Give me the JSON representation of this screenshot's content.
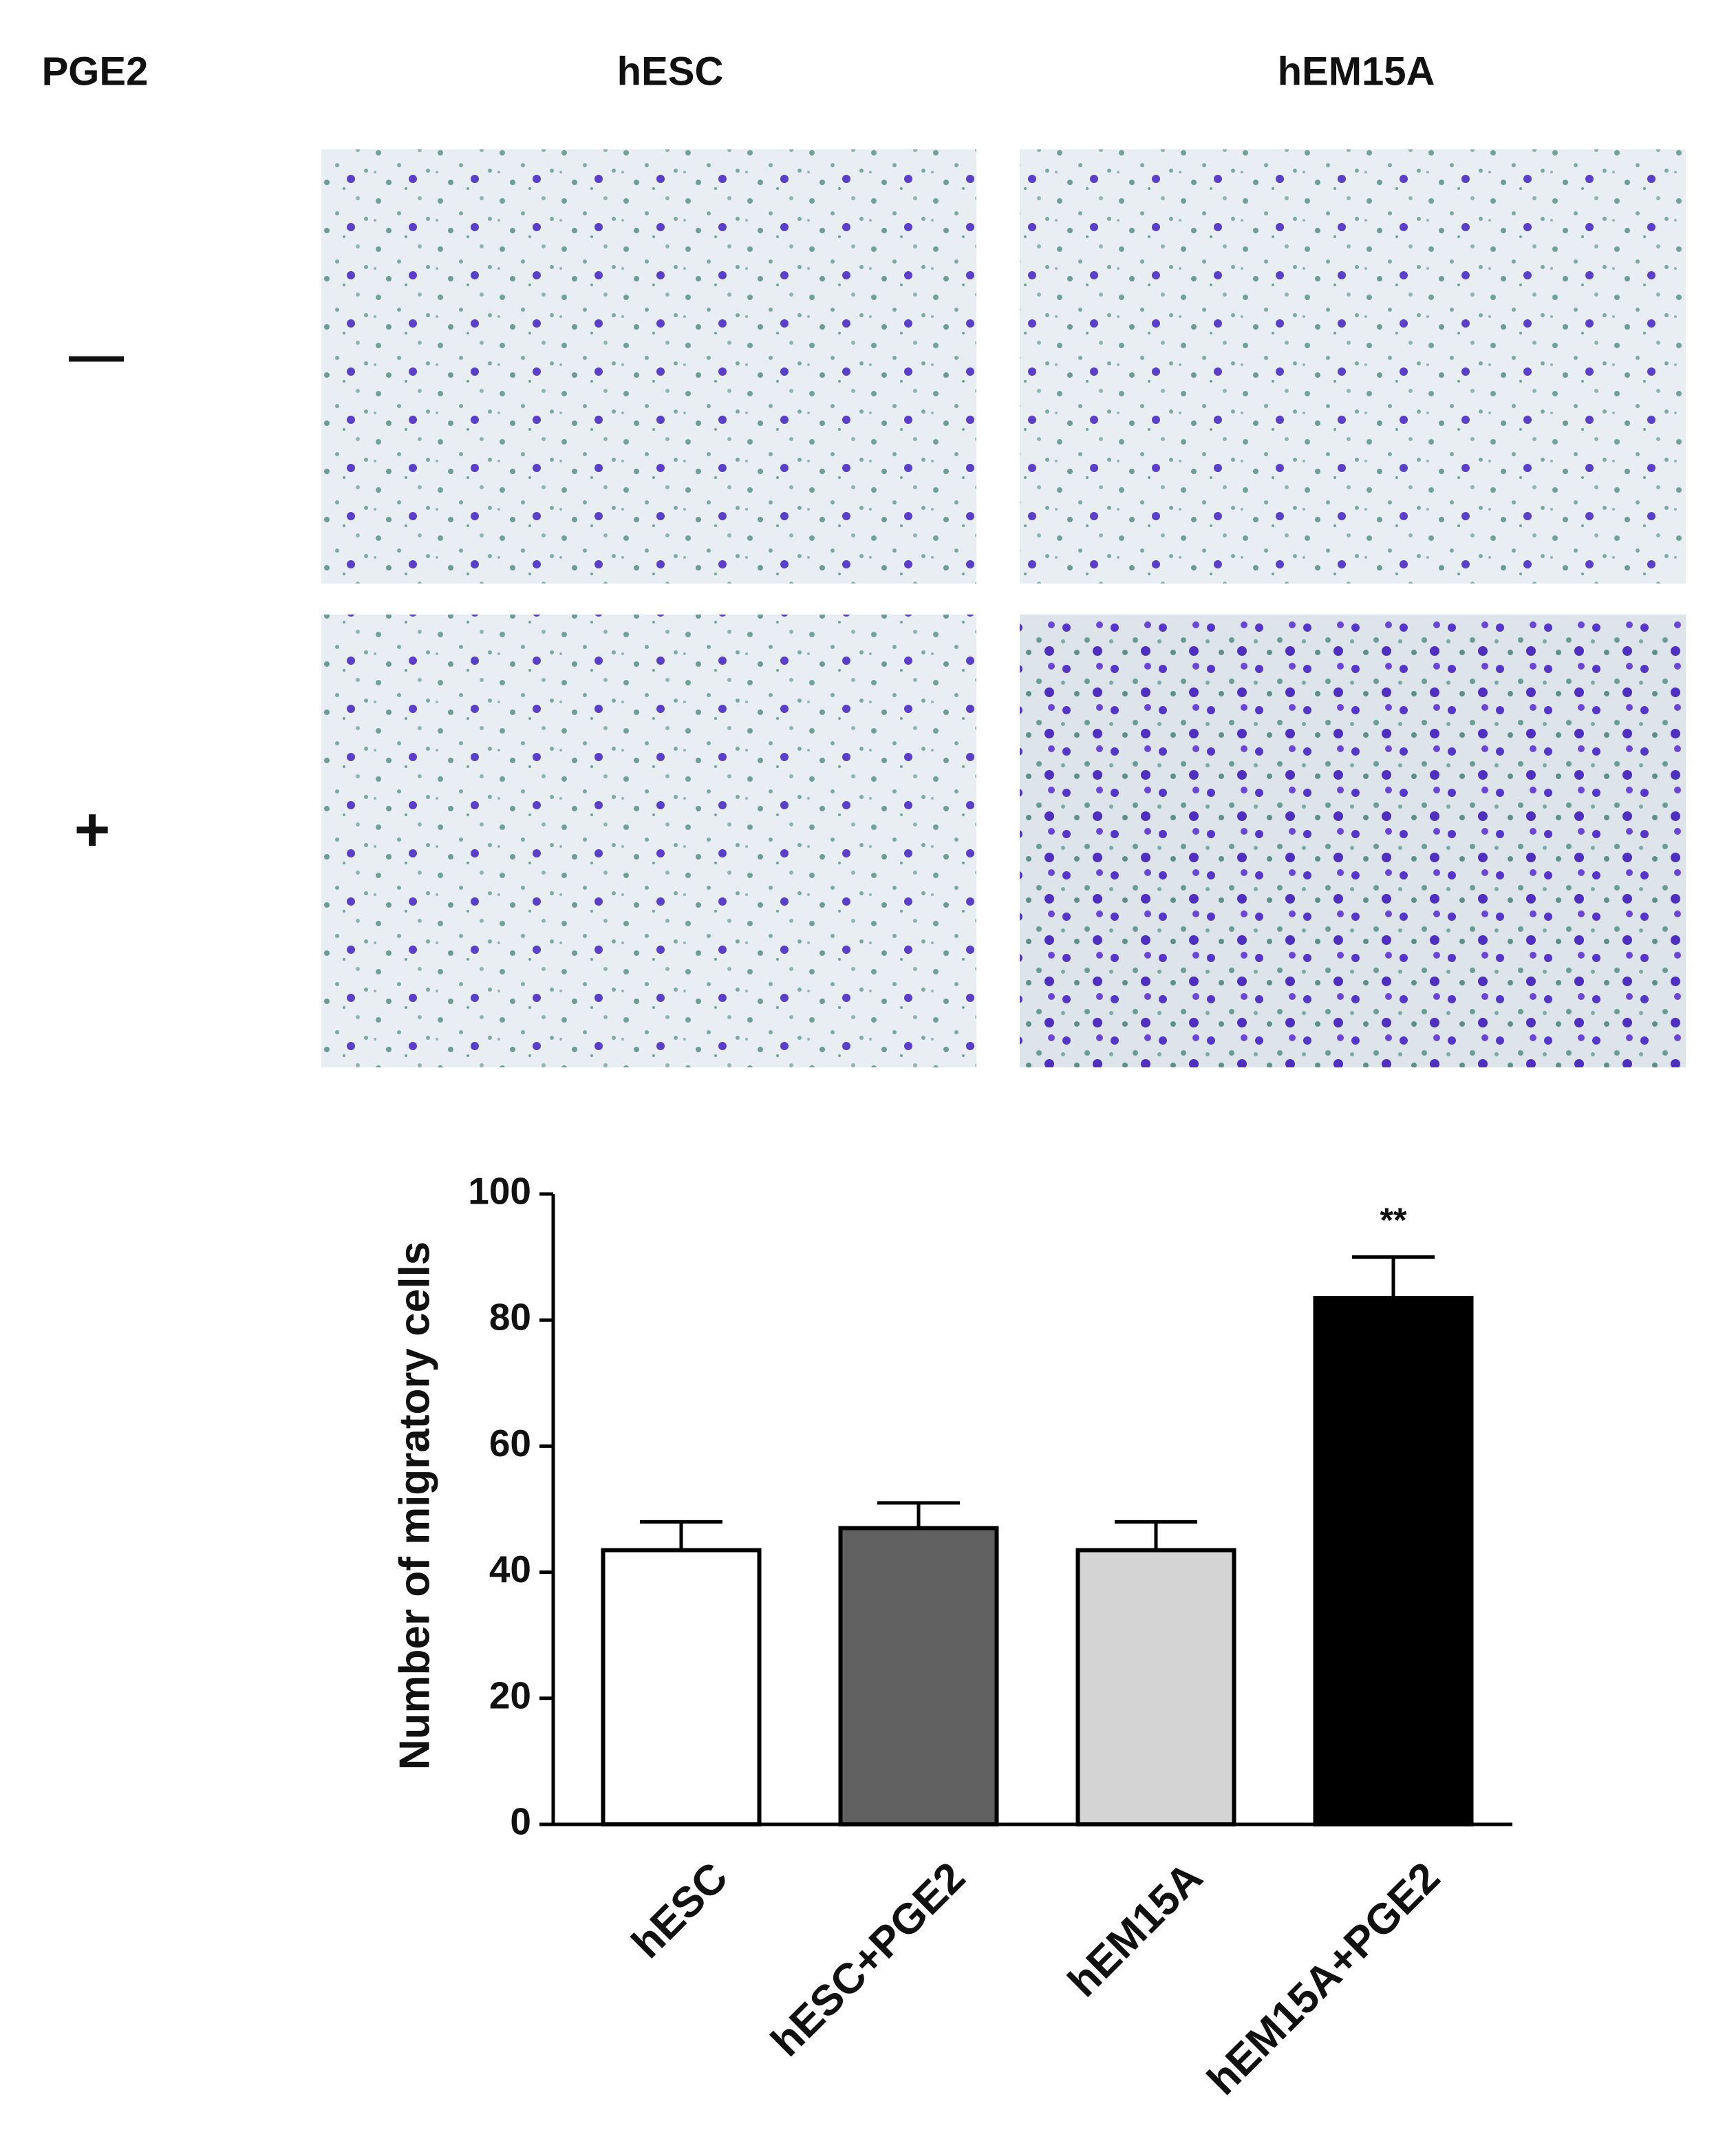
{
  "panel": {
    "header": [
      "PGE2",
      "hESC",
      "hEM15A"
    ],
    "row_labels": [
      "—",
      "+"
    ]
  },
  "chart_data": {
    "type": "bar",
    "ylabel": "Number of migratory cells",
    "categories": [
      "hESC",
      "hESC+PGE2",
      "hEM15A",
      "hEM15A+PGE2"
    ],
    "values": [
      43.5,
      47,
      43.5,
      83.5
    ],
    "errors": [
      4.5,
      4,
      4.5,
      6.5
    ],
    "colors": [
      "#ffffff",
      "#606060",
      "#d4d4d4",
      "#000000"
    ],
    "annotation": "**",
    "ylim": [
      0,
      100
    ],
    "yticks": [
      0,
      20,
      40,
      60,
      80,
      100
    ]
  }
}
